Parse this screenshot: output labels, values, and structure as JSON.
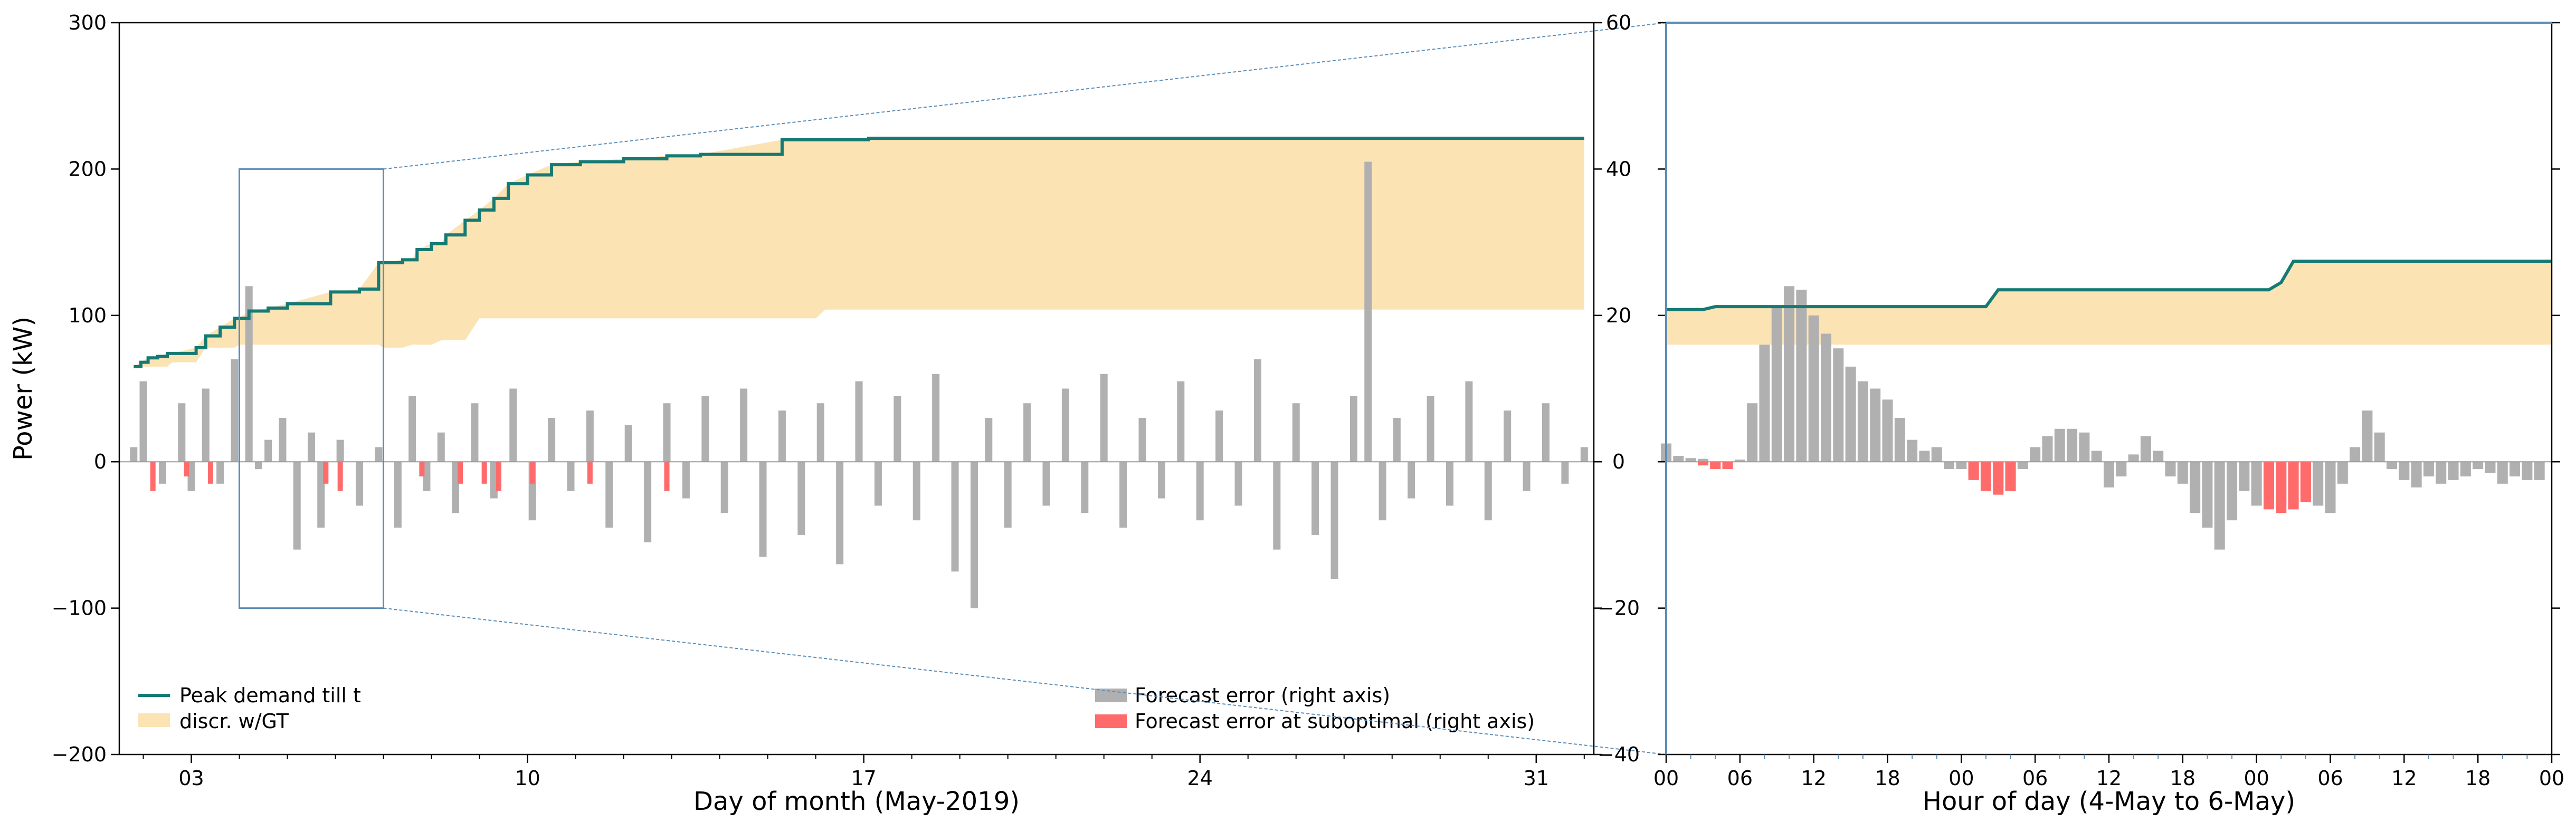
{
  "colors": {
    "peak_line": "#157a73",
    "band_fill": "#fce3b3",
    "error_bar": "#b0b0b0",
    "error_bar_subopt": "#ff6b6b",
    "zoom_box": "#5b8db8",
    "axis": "#000000"
  },
  "chart_data": [
    {
      "type": "bar",
      "panel": "main",
      "xlabel": "Day of month (May-2019)",
      "ylabel": "Power (kW)",
      "right_ylabel": "",
      "xlim": [
        1.5,
        32.2
      ],
      "ylim": [
        -200,
        300
      ],
      "right_ylim": [
        -40,
        60
      ],
      "x_ticks": [
        3,
        10,
        17,
        24,
        31
      ],
      "x_tick_labels": [
        "03",
        "10",
        "17",
        "24",
        "31"
      ],
      "y_ticks": [
        -200,
        -100,
        0,
        100,
        200,
        300
      ],
      "y_tick_labels": [
        "−200",
        "−100",
        "0",
        "100",
        "200",
        "300"
      ],
      "right_y_ticks": [
        -40,
        -20,
        0,
        20,
        40,
        60
      ],
      "right_y_tick_labels": [
        "−40",
        "−20",
        "0",
        "20",
        "40",
        "60"
      ],
      "zoom_box": {
        "x": [
          4.0,
          7.0
        ],
        "y": [
          -100,
          200
        ]
      },
      "legend_left": {
        "placement": "lower-left",
        "entries": [
          {
            "label": "Peak demand till t",
            "kind": "line"
          },
          {
            "label": "discr. w/GT",
            "kind": "patch"
          }
        ]
      },
      "legend_right": {
        "placement": "lower-right",
        "entries": [
          {
            "label": "Forecast error (right axis)",
            "kind": "bar"
          },
          {
            "label": "Forecast error at suboptimal (right axis)",
            "kind": "bar-subopt"
          }
        ]
      },
      "peak_demand": {
        "name": "Peak demand till t",
        "x": [
          1.8,
          1.95,
          2.1,
          2.3,
          2.5,
          3.1,
          3.3,
          3.6,
          3.9,
          4.2,
          4.6,
          5.0,
          5.9,
          6.5,
          6.9,
          7.4,
          7.7,
          8.0,
          8.3,
          8.7,
          9.0,
          9.3,
          9.6,
          10.0,
          10.5,
          11.1,
          12.0,
          12.9,
          13.6,
          15.3,
          16.5,
          17.1,
          18.0,
          20.0,
          22.0,
          25.0,
          28.0,
          31.5,
          32.0
        ],
        "y": [
          65,
          68,
          71,
          72,
          74,
          78,
          86,
          92,
          98,
          103,
          105,
          108,
          116,
          118,
          136,
          138,
          145,
          149,
          155,
          165,
          172,
          180,
          190,
          196,
          203,
          205,
          207,
          209,
          210,
          220,
          220,
          221,
          221,
          221,
          221,
          221,
          221,
          221,
          221
        ]
      },
      "discr_lower": {
        "x": [
          1.8,
          2.6,
          3.3,
          4.0,
          6.0,
          7.0,
          7.6,
          8.2,
          9.0,
          12.0,
          16.0,
          16.2,
          20.0,
          25.0,
          32.0
        ],
        "y": [
          65,
          68,
          78,
          80,
          80,
          78,
          80,
          83,
          98,
          98,
          98,
          104,
          104,
          104,
          104
        ]
      },
      "forecast_error": {
        "name": "Forecast error (right axis)",
        "x": [
          1.8,
          2.0,
          2.4,
          2.8,
          3.0,
          3.3,
          3.6,
          3.9,
          4.2,
          4.4,
          4.6,
          4.9,
          5.2,
          5.5,
          5.7,
          6.1,
          6.5,
          6.9,
          7.3,
          7.6,
          7.9,
          8.2,
          8.5,
          8.9,
          9.3,
          9.7,
          10.1,
          10.5,
          10.9,
          11.3,
          11.7,
          12.1,
          12.5,
          12.9,
          13.3,
          13.7,
          14.1,
          14.5,
          14.9,
          15.3,
          15.7,
          16.1,
          16.5,
          16.9,
          17.3,
          17.7,
          18.1,
          18.5,
          18.9,
          19.3,
          19.6,
          20.0,
          20.4,
          20.8,
          21.2,
          21.6,
          22.0,
          22.4,
          22.8,
          23.2,
          23.6,
          24.0,
          24.4,
          24.8,
          25.2,
          25.6,
          26.0,
          26.4,
          26.8,
          27.2,
          27.5,
          27.8,
          28.1,
          28.4,
          28.8,
          29.2,
          29.6,
          30.0,
          30.4,
          30.8,
          31.2,
          31.6,
          32.0
        ],
        "y": [
          2,
          11,
          -3,
          8,
          -4,
          10,
          -3,
          14,
          24,
          -1,
          3,
          6,
          -12,
          4,
          -9,
          3,
          -6,
          2,
          -9,
          9,
          -4,
          4,
          -7,
          8,
          -5,
          10,
          -8,
          6,
          -4,
          7,
          -9,
          5,
          -11,
          8,
          -5,
          9,
          -7,
          10,
          -13,
          7,
          -10,
          8,
          -14,
          11,
          -6,
          9,
          -8,
          12,
          -15,
          -20,
          6,
          -9,
          8,
          -6,
          10,
          -7,
          12,
          -9,
          6,
          -5,
          11,
          -8,
          7,
          -6,
          14,
          -12,
          8,
          -10,
          -16,
          9,
          41,
          -8,
          6,
          -5,
          9,
          -6,
          11,
          -8,
          7,
          -4,
          8,
          -3,
          2
        ]
      },
      "forecast_error_subopt": {
        "name": "Forecast error at suboptimal (right axis)",
        "x": [
          2.2,
          2.9,
          3.4,
          5.8,
          6.1,
          7.8,
          8.6,
          9.1,
          9.4,
          10.1,
          11.3,
          12.9
        ],
        "y": [
          -4,
          -2,
          -3,
          -3,
          -4,
          -2,
          -3,
          -3,
          -4,
          -3,
          -3,
          -4
        ]
      }
    },
    {
      "type": "bar",
      "panel": "zoom",
      "xlabel": "Hour of day (4-May to 6-May)",
      "xlim": [
        0,
        72
      ],
      "ylim": [
        -40,
        60
      ],
      "x_ticks": [
        0,
        6,
        12,
        18,
        24,
        30,
        36,
        42,
        48,
        54,
        60,
        66,
        72
      ],
      "x_tick_labels": [
        "00",
        "06",
        "12",
        "18",
        "00",
        "06",
        "12",
        "18",
        "00",
        "06",
        "12",
        "18",
        "00"
      ],
      "y_ticks": [
        -40,
        -20,
        0,
        20,
        40,
        60
      ],
      "y_tick_labels": [
        "−40",
        "−20",
        "0",
        "20",
        "40",
        "60"
      ],
      "peak_demand": {
        "x": [
          0,
          3,
          4,
          17,
          22,
          26,
          27,
          49,
          50,
          51,
          72
        ],
        "y": [
          20.8,
          20.8,
          21.2,
          21.2,
          21.2,
          21.2,
          23.5,
          23.5,
          24.5,
          27.4,
          27.4
        ]
      },
      "discr_lower": {
        "x": [
          0,
          72
        ],
        "y": [
          16,
          16
        ]
      },
      "forecast_error": {
        "x": [
          0,
          1,
          2,
          3,
          4,
          5,
          6,
          7,
          8,
          9,
          10,
          11,
          12,
          13,
          14,
          15,
          16,
          17,
          18,
          19,
          20,
          21,
          22,
          23,
          24,
          25,
          26,
          27,
          28,
          29,
          30,
          31,
          32,
          33,
          34,
          35,
          36,
          37,
          38,
          39,
          40,
          41,
          42,
          43,
          44,
          45,
          46,
          47,
          48,
          49,
          50,
          51,
          52,
          53,
          54,
          55,
          56,
          57,
          58,
          59,
          60,
          61,
          62,
          63,
          64,
          65,
          66,
          67,
          68,
          69,
          70,
          71
        ],
        "y": [
          2.5,
          0.8,
          0.5,
          0.4,
          -0.4,
          -0.8,
          0.3,
          8,
          16,
          21,
          24,
          23.5,
          20,
          17.5,
          15.5,
          13,
          11,
          10,
          8.5,
          6,
          3,
          1.5,
          2,
          -1,
          -1,
          -2,
          -4,
          -3.5,
          -3,
          -1,
          2,
          3.5,
          4.5,
          4.5,
          4,
          1.5,
          -3.5,
          -2,
          1,
          3.5,
          1.5,
          -2,
          -3,
          -7,
          -9,
          -12,
          -8,
          -4,
          -6,
          -4,
          -6,
          -6.5,
          -5,
          -6,
          -7,
          -3,
          2,
          7,
          4,
          -1,
          -2.5,
          -3.5,
          -2,
          -3,
          -2.5,
          -2,
          -1,
          -1.5,
          -3,
          -2,
          -2.5,
          -2.5
        ]
      },
      "forecast_error_subopt": {
        "x": [
          3,
          4,
          5,
          25,
          26,
          27,
          28,
          49,
          50,
          51,
          52
        ],
        "y": [
          -0.5,
          -1,
          -1,
          -2.5,
          -4,
          -4.5,
          -4,
          -6.5,
          -7,
          -6.5,
          -5.5
        ]
      }
    }
  ]
}
